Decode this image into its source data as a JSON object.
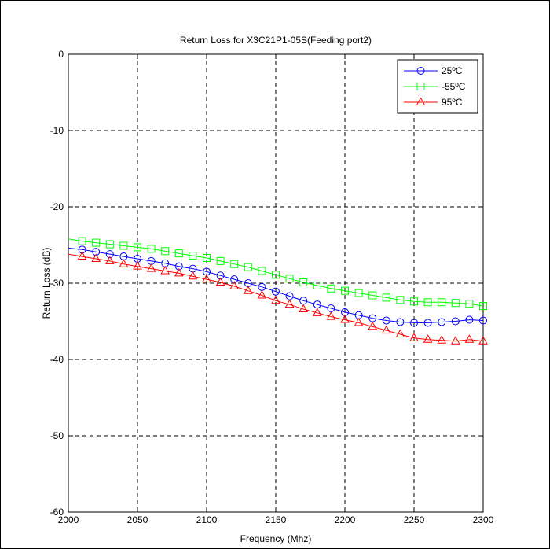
{
  "chart_data": {
    "type": "line",
    "title": "Return Loss for X3C21P1-05S(Feeding port2)",
    "xlabel": "Frequency (Mhz)",
    "ylabel": "Return Loss (dB)",
    "xlim": [
      2000,
      2300
    ],
    "ylim": [
      -60,
      0
    ],
    "xticks": [
      2000,
      2050,
      2100,
      2150,
      2200,
      2250,
      2300
    ],
    "yticks": [
      0,
      -10,
      -20,
      -30,
      -40,
      -50,
      -60
    ],
    "grid": true,
    "legend_position": "top-right",
    "x": [
      2000,
      2010,
      2020,
      2030,
      2040,
      2050,
      2060,
      2070,
      2080,
      2090,
      2100,
      2110,
      2120,
      2130,
      2140,
      2150,
      2160,
      2170,
      2180,
      2190,
      2200,
      2210,
      2220,
      2230,
      2240,
      2250,
      2260,
      2270,
      2280,
      2290,
      2300
    ],
    "series": [
      {
        "name": "25ºC",
        "color": "#0000ff",
        "marker": "circle",
        "values": [
          -25.4,
          -25.6,
          -25.9,
          -26.2,
          -26.5,
          -26.8,
          -27.1,
          -27.4,
          -27.8,
          -28.1,
          -28.5,
          -29.0,
          -29.5,
          -30.0,
          -30.5,
          -31.1,
          -31.7,
          -32.3,
          -32.8,
          -33.3,
          -33.8,
          -34.2,
          -34.6,
          -34.9,
          -35.1,
          -35.2,
          -35.2,
          -35.1,
          -35.0,
          -34.8,
          -34.9
        ]
      },
      {
        "name": "-55ºC",
        "color": "#00ff00",
        "marker": "square",
        "values": [
          -24.2,
          -24.5,
          -24.7,
          -24.9,
          -25.1,
          -25.3,
          -25.5,
          -25.8,
          -26.1,
          -26.4,
          -26.7,
          -27.1,
          -27.5,
          -27.9,
          -28.4,
          -28.9,
          -29.4,
          -29.9,
          -30.3,
          -30.7,
          -31.0,
          -31.3,
          -31.6,
          -31.9,
          -32.2,
          -32.4,
          -32.5,
          -32.5,
          -32.6,
          -32.7,
          -33.0
        ]
      },
      {
        "name": "95ºC",
        "color": "#ff0000",
        "marker": "triangle",
        "values": [
          -26.2,
          -26.5,
          -26.8,
          -27.1,
          -27.5,
          -27.8,
          -28.1,
          -28.4,
          -28.7,
          -29.1,
          -29.5,
          -29.9,
          -30.4,
          -31.0,
          -31.6,
          -32.3,
          -32.8,
          -33.4,
          -33.9,
          -34.4,
          -34.8,
          -35.2,
          -35.7,
          -36.2,
          -36.7,
          -37.2,
          -37.4,
          -37.5,
          -37.6,
          -37.4,
          -37.6
        ]
      }
    ]
  }
}
